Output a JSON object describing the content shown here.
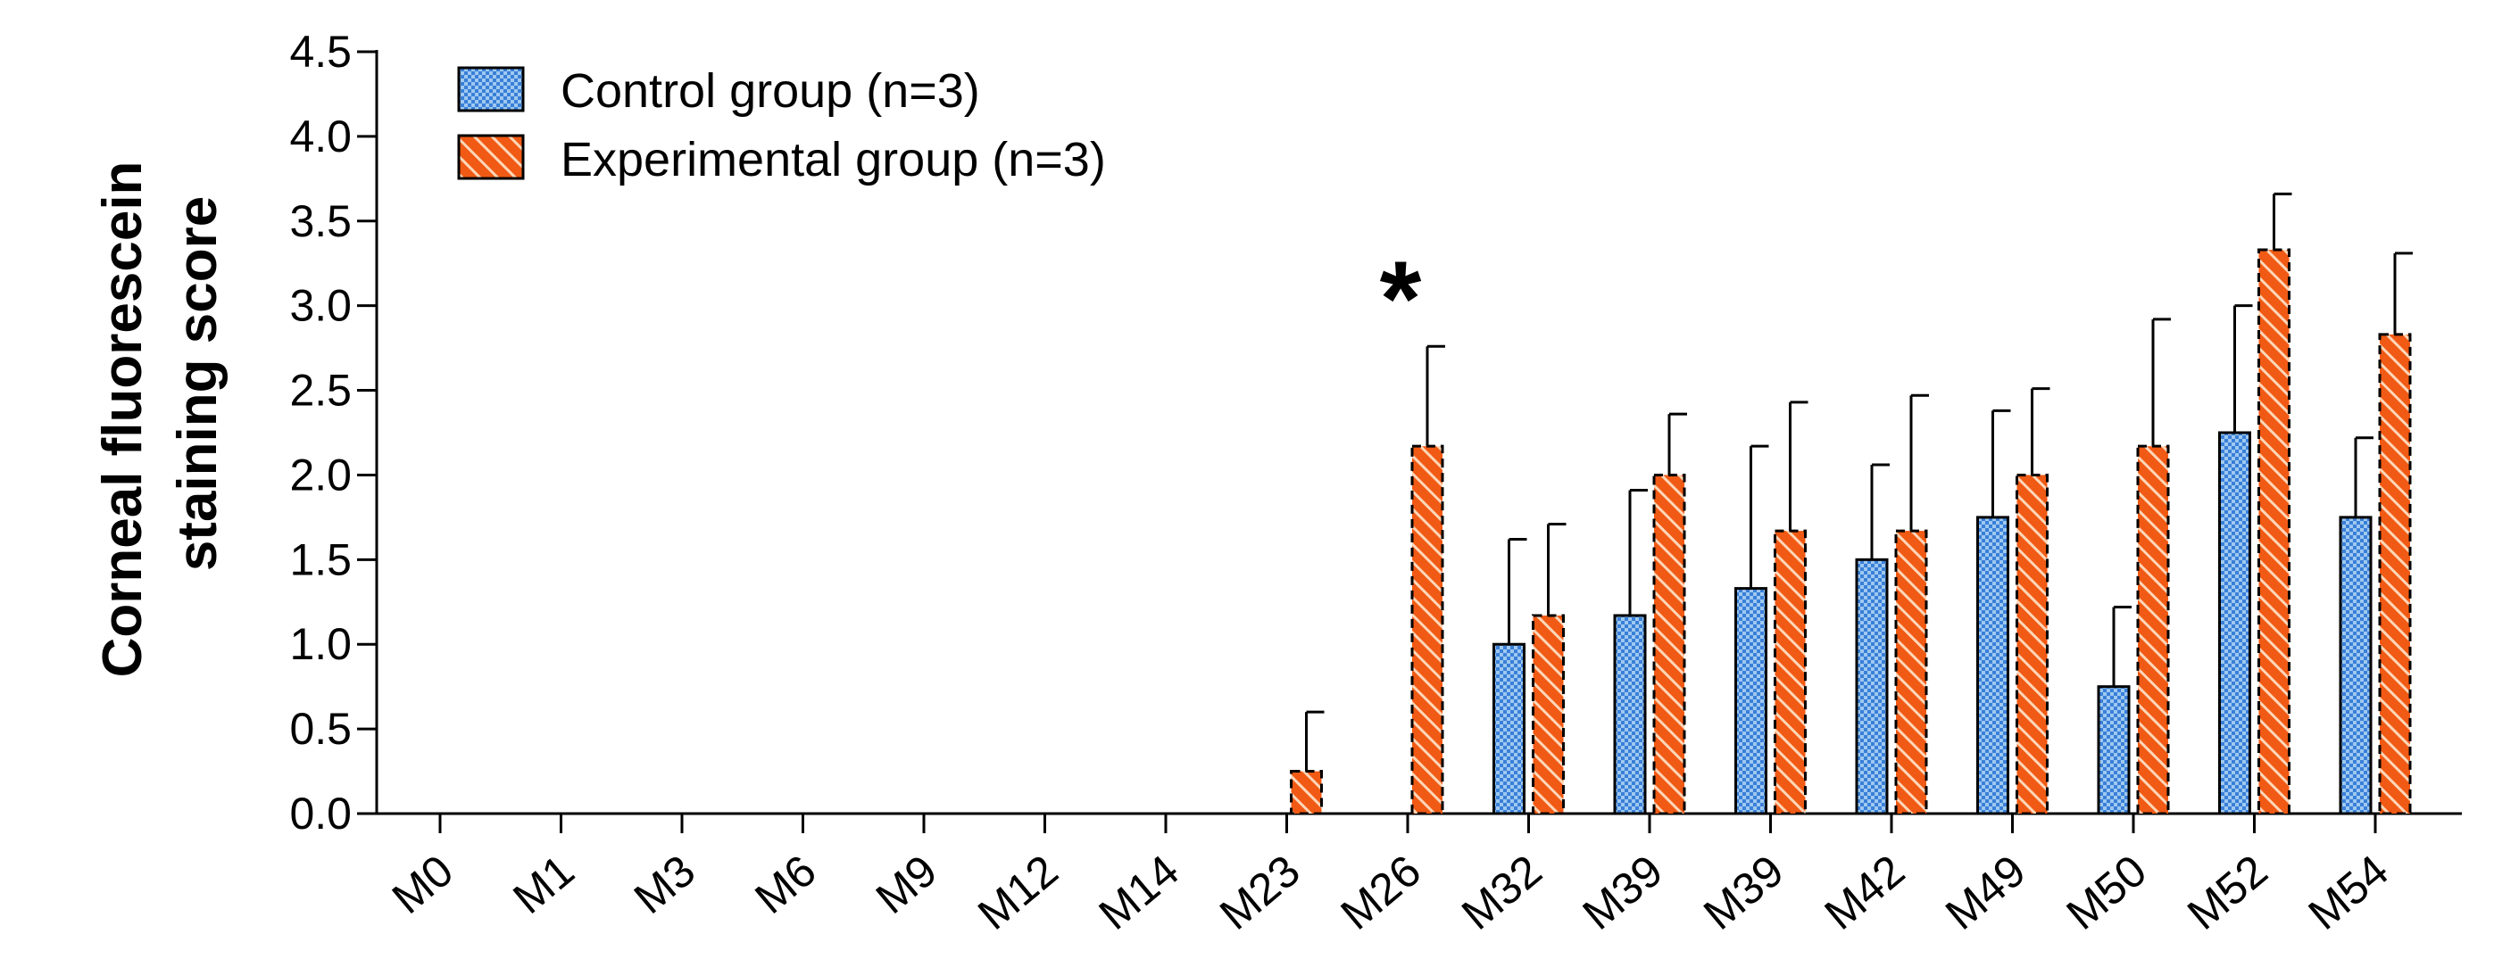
{
  "chart_data": {
    "type": "bar",
    "ylabel_lines": [
      "Corneal fluorescein",
      "staining score"
    ],
    "ylim": [
      0,
      4.5
    ],
    "yticks": [
      "0.0",
      "0.5",
      "1.0",
      "1.5",
      "2.0",
      "2.5",
      "3.0",
      "3.5",
      "4.0",
      "4.5"
    ],
    "categories": [
      "M0",
      "M1",
      "M3",
      "M6",
      "M9",
      "M12",
      "M14",
      "M23",
      "M26",
      "M32",
      "M39",
      "M39",
      "M42",
      "M49",
      "M50",
      "M52",
      "M54"
    ],
    "series": [
      {
        "name": "Control group (n=3)",
        "pattern": "checker-blue",
        "values": [
          0,
          0,
          0,
          0,
          0,
          0,
          0,
          0,
          0,
          1.0,
          1.17,
          1.33,
          1.5,
          1.75,
          0.75,
          2.25,
          1.75
        ],
        "errors": [
          0,
          0,
          0,
          0,
          0,
          0,
          0,
          0,
          0,
          0.62,
          0.74,
          0.84,
          0.56,
          0.63,
          0.47,
          0.75,
          0.47
        ]
      },
      {
        "name": "Experimental group (n=3)",
        "pattern": "hatch-orange",
        "values": [
          0,
          0,
          0,
          0,
          0,
          0,
          0,
          0.25,
          2.17,
          1.17,
          2.0,
          1.67,
          1.67,
          2.0,
          2.17,
          3.33,
          2.83
        ],
        "errors": [
          0,
          0,
          0,
          0,
          0,
          0,
          0,
          0.35,
          0.59,
          0.54,
          0.36,
          0.76,
          0.8,
          0.51,
          0.75,
          0.33,
          0.48
        ]
      }
    ],
    "annotations": [
      {
        "text": "*",
        "category_index": 8
      }
    ],
    "legend_position": "top-left",
    "grid": false,
    "colors": {
      "control_fill": "#9ec9f0",
      "control_pattern": "#3a7fd8",
      "experimental_fill": "#f05a14",
      "experimental_hatch": "#ffd6b8"
    }
  }
}
